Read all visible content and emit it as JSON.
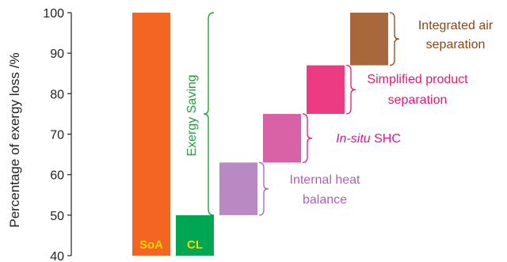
{
  "chart_data": {
    "type": "bar",
    "subtype": "waterfall",
    "ylabel": "Percentage of exergy loss /%",
    "ylim": [
      40,
      100
    ],
    "yticks": [
      40,
      50,
      60,
      70,
      80,
      90,
      100
    ],
    "grid": false,
    "bars": [
      {
        "label": "SoA",
        "base": 40,
        "top": 100,
        "color": "#f26522",
        "label_color": "#ffd200"
      },
      {
        "label": "CL",
        "base": 40,
        "top": 50,
        "color": "#00a651",
        "label_color": "#ffd200"
      },
      {
        "label": "",
        "base": 50,
        "top": 63,
        "color": "#b889c2"
      },
      {
        "label": "",
        "base": 63,
        "top": 75,
        "color": "#d962a6"
      },
      {
        "label": "",
        "base": 75,
        "top": 87,
        "color": "#ec3b83"
      },
      {
        "label": "",
        "base": 87,
        "top": 100,
        "color": "#a8683b"
      }
    ],
    "annotations": [
      {
        "bar": 2,
        "lines": [
          "Internal heat",
          "balance"
        ],
        "color": "#b25db8"
      },
      {
        "bar": 3,
        "lines": [
          [
            "In-situ",
            "italic"
          ],
          [
            " SHC",
            "normal"
          ]
        ],
        "color": "#d81b8c"
      },
      {
        "bar": 4,
        "lines": [
          "Simplified product",
          "separation"
        ],
        "color": "#e8176f"
      },
      {
        "bar": 5,
        "lines": [
          "Integrated air",
          "separation"
        ],
        "color": "#8b4513"
      }
    ],
    "span_label": {
      "text": "Exergy Saving",
      "from": 50,
      "to": 100,
      "color": "#22a03a"
    }
  }
}
